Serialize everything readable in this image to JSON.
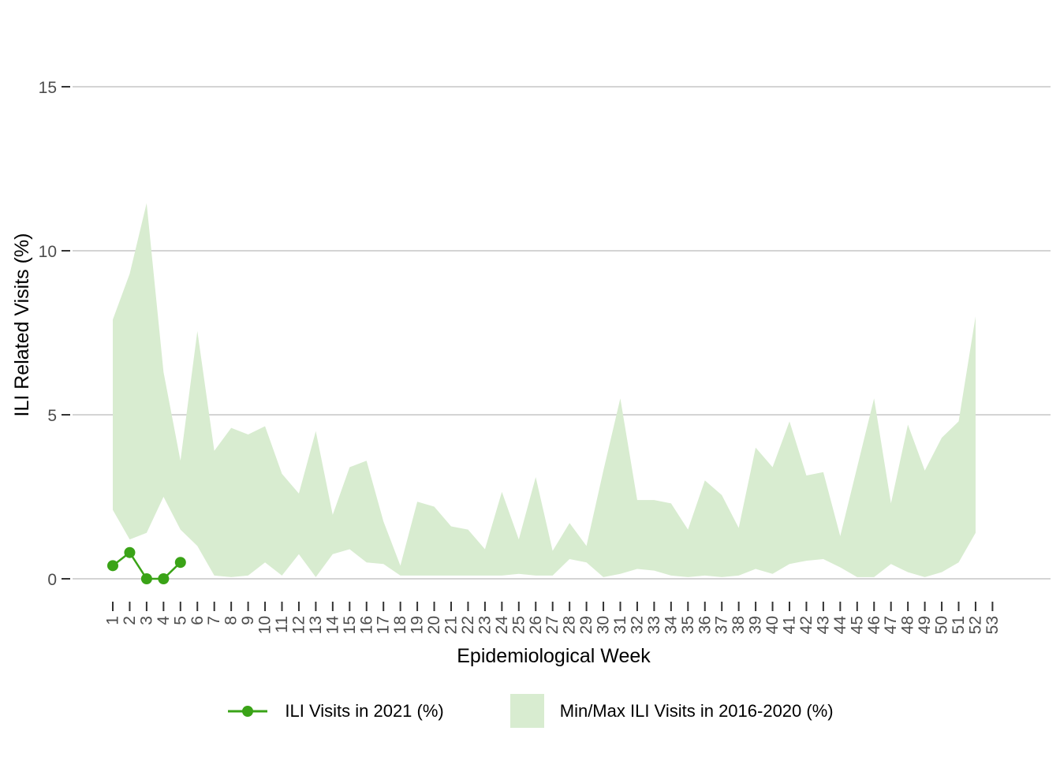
{
  "figure": {
    "background": "#ffffff"
  },
  "axes": {
    "x_title": "Epidemiological Week",
    "y_title": "ILI Related Visits (%)",
    "x_ticks": [
      1,
      2,
      3,
      4,
      5,
      6,
      7,
      8,
      9,
      10,
      11,
      12,
      13,
      14,
      15,
      16,
      17,
      18,
      19,
      20,
      21,
      22,
      23,
      24,
      25,
      26,
      27,
      28,
      29,
      30,
      31,
      32,
      33,
      34,
      35,
      36,
      37,
      38,
      39,
      40,
      41,
      42,
      43,
      44,
      45,
      46,
      47,
      48,
      49,
      50,
      51,
      52,
      53
    ],
    "y_ticks": [
      0,
      5,
      10,
      15
    ],
    "tick_label_color": "#4d4d4d",
    "tick_mark_color": "#333333",
    "gridline_color": "#d4d4d4"
  },
  "legend": {
    "items": [
      {
        "label": "ILI Visits in 2021 (%)",
        "type": "line-marker",
        "color": "#3aa317"
      },
      {
        "label": "Min/Max ILI Visits in 2016-2020 (%)",
        "type": "fill",
        "color": "#d8ecd0"
      }
    ]
  },
  "chart_data": {
    "type": "area",
    "title": "",
    "xlabel": "Epidemiological Week",
    "ylabel": "ILI Related Visits (%)",
    "xlim_weeks": [
      1,
      53
    ],
    "ylim": [
      0,
      15
    ],
    "grid": "horizontal-only",
    "legend_position": "bottom",
    "series": [
      {
        "name": "ILI Visits in 2021 (%)",
        "type": "line-with-markers",
        "color": "#3aa317",
        "x": [
          1,
          2,
          3,
          4,
          5
        ],
        "y": [
          0.4,
          0.8,
          0.0,
          0.0,
          0.5
        ]
      },
      {
        "name": "Min/Max ILI Visits in 2016-2020 (%)",
        "type": "band",
        "color": "#d8ecd0",
        "x": [
          1,
          2,
          3,
          4,
          5,
          6,
          7,
          8,
          9,
          10,
          11,
          12,
          13,
          14,
          15,
          16,
          17,
          18,
          19,
          20,
          21,
          22,
          23,
          24,
          25,
          26,
          27,
          28,
          29,
          30,
          31,
          32,
          33,
          34,
          35,
          36,
          37,
          38,
          39,
          40,
          41,
          42,
          43,
          44,
          45,
          46,
          47,
          48,
          49,
          50,
          51,
          52
        ],
        "min": [
          2.1,
          1.2,
          1.4,
          2.5,
          1.5,
          1.0,
          0.1,
          0.05,
          0.1,
          0.5,
          0.1,
          0.75,
          0.05,
          0.75,
          0.9,
          0.5,
          0.45,
          0.1,
          0.1,
          0.1,
          0.1,
          0.1,
          0.1,
          0.1,
          0.15,
          0.1,
          0.1,
          0.6,
          0.5,
          0.05,
          0.15,
          0.3,
          0.25,
          0.1,
          0.05,
          0.1,
          0.05,
          0.1,
          0.3,
          0.15,
          0.45,
          0.55,
          0.6,
          0.35,
          0.05,
          0.05,
          0.45,
          0.2,
          0.05,
          0.2,
          0.5,
          1.4
        ],
        "max": [
          7.9,
          9.3,
          11.45,
          6.3,
          3.6,
          7.55,
          3.9,
          4.6,
          4.4,
          4.65,
          3.2,
          2.6,
          4.5,
          1.95,
          3.4,
          3.6,
          1.75,
          0.4,
          2.35,
          2.2,
          1.6,
          1.5,
          0.9,
          2.65,
          1.2,
          3.1,
          0.85,
          1.7,
          1.0,
          3.3,
          5.5,
          2.4,
          2.4,
          2.3,
          1.5,
          3.0,
          2.55,
          1.55,
          4.0,
          3.4,
          4.8,
          3.15,
          3.25,
          1.3,
          3.4,
          5.5,
          2.3,
          4.7,
          3.3,
          4.3,
          4.8,
          8.0
        ]
      }
    ]
  }
}
